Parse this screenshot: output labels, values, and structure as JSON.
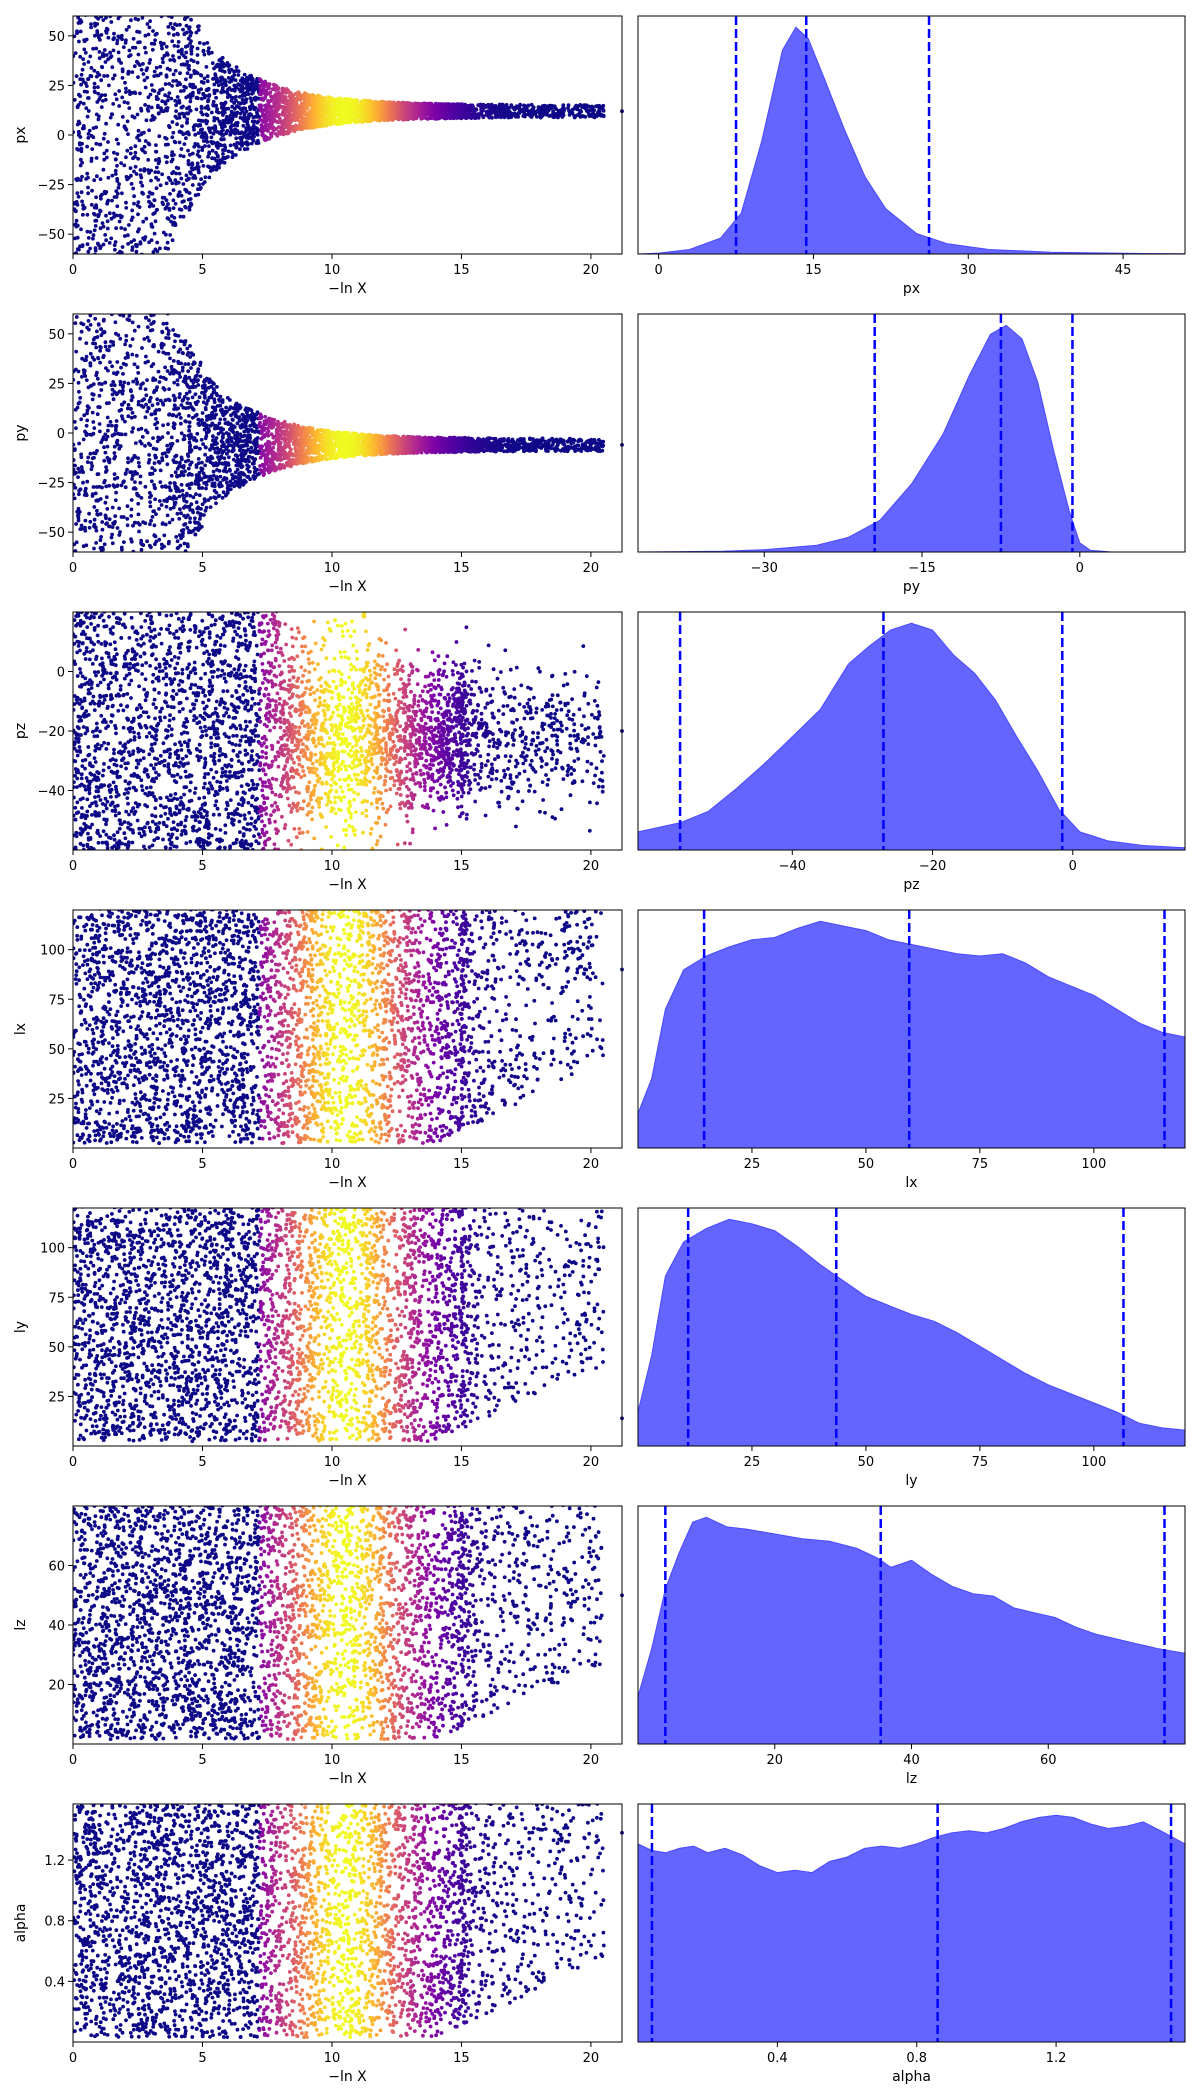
{
  "figure": {
    "x_axis_label": "−ln X",
    "colormap": "plasma",
    "scatter_color_low": "#0d0887",
    "kde_fill_color": "#6464ff",
    "kde_edge_color": "#4a4aff",
    "quantile_line_color": "#0000ff"
  },
  "chart_data": [
    {
      "type": "scatter",
      "name": "px-trace",
      "parameter": "px",
      "xlabel": "−ln X",
      "ylabel": "px",
      "xlim": [
        0,
        21.2
      ],
      "ylim": [
        -60,
        60
      ],
      "xticks": [
        0,
        5,
        10,
        15,
        20
      ],
      "yticks": [
        -50,
        -25,
        0,
        25,
        50
      ],
      "pattern": "converge",
      "converge_center": 12,
      "final_x": 21.2,
      "final_y": 12
    },
    {
      "type": "area",
      "name": "px-kde",
      "parameter": "px",
      "xlabel": "px",
      "ylabel": "",
      "xlim": [
        -2,
        51
      ],
      "xticks": [
        0,
        15,
        30,
        45
      ],
      "density": [
        [
          -2,
          0
        ],
        [
          0,
          0.004
        ],
        [
          3,
          0.02
        ],
        [
          6,
          0.07
        ],
        [
          8,
          0.18
        ],
        [
          10,
          0.5
        ],
        [
          12,
          0.9
        ],
        [
          13.3,
          1.0
        ],
        [
          14.5,
          0.95
        ],
        [
          16,
          0.78
        ],
        [
          18,
          0.55
        ],
        [
          20,
          0.34
        ],
        [
          22,
          0.2
        ],
        [
          25,
          0.09
        ],
        [
          28,
          0.045
        ],
        [
          32,
          0.02
        ],
        [
          38,
          0.008
        ],
        [
          45,
          0.003
        ],
        [
          51,
          0.001
        ]
      ],
      "quantiles": [
        7.5,
        14.3,
        26.2
      ]
    },
    {
      "type": "scatter",
      "name": "py-trace",
      "parameter": "py",
      "xlabel": "−ln X",
      "ylabel": "py",
      "xlim": [
        0,
        21.2
      ],
      "ylim": [
        -60,
        60
      ],
      "xticks": [
        0,
        5,
        10,
        15,
        20
      ],
      "yticks": [
        -50,
        -25,
        0,
        25,
        50
      ],
      "pattern": "converge",
      "converge_center": -6,
      "final_x": 21.2,
      "final_y": -6
    },
    {
      "type": "area",
      "name": "py-kde",
      "parameter": "py",
      "xlabel": "py",
      "ylabel": "",
      "xlim": [
        -42,
        10
      ],
      "xticks": [
        -30,
        -15,
        0
      ],
      "density": [
        [
          -42,
          0
        ],
        [
          -34,
          0.003
        ],
        [
          -30,
          0.01
        ],
        [
          -25,
          0.03
        ],
        [
          -22,
          0.065
        ],
        [
          -19,
          0.14
        ],
        [
          -16,
          0.3
        ],
        [
          -13,
          0.52
        ],
        [
          -10.5,
          0.78
        ],
        [
          -8.5,
          0.96
        ],
        [
          -7,
          1.0
        ],
        [
          -5.5,
          0.94
        ],
        [
          -4,
          0.75
        ],
        [
          -2.5,
          0.45
        ],
        [
          -1,
          0.18
        ],
        [
          0,
          0.04
        ],
        [
          1,
          0.008
        ],
        [
          3,
          0.0
        ],
        [
          10,
          0.0
        ]
      ],
      "quantiles": [
        -19.5,
        -7.5,
        -0.7
      ]
    },
    {
      "type": "scatter",
      "name": "pz-trace",
      "parameter": "pz",
      "xlabel": "−ln X",
      "ylabel": "pz",
      "xlim": [
        0,
        21.2
      ],
      "ylim": [
        -60,
        20
      ],
      "xticks": [
        0,
        5,
        10,
        15,
        20
      ],
      "yticks": [
        -40,
        -20,
        0
      ],
      "pattern": "band",
      "band_center": -22,
      "band_spread": 22,
      "final_x": 21.2,
      "final_y": -20
    },
    {
      "type": "area",
      "name": "pz-kde",
      "parameter": "pz",
      "xlabel": "pz",
      "ylabel": "",
      "xlim": [
        -62,
        16
      ],
      "xticks": [
        -40,
        -20,
        0
      ],
      "density": [
        [
          -62,
          0.08
        ],
        [
          -56,
          0.12
        ],
        [
          -52,
          0.17
        ],
        [
          -48,
          0.27
        ],
        [
          -44,
          0.38
        ],
        [
          -40,
          0.5
        ],
        [
          -36,
          0.62
        ],
        [
          -32,
          0.82
        ],
        [
          -29,
          0.9
        ],
        [
          -26,
          0.97
        ],
        [
          -23,
          1.0
        ],
        [
          -20,
          0.97
        ],
        [
          -17,
          0.86
        ],
        [
          -14,
          0.78
        ],
        [
          -11,
          0.66
        ],
        [
          -8,
          0.5
        ],
        [
          -5,
          0.35
        ],
        [
          -2,
          0.18
        ],
        [
          1,
          0.08
        ],
        [
          5,
          0.04
        ],
        [
          10,
          0.02
        ],
        [
          16,
          0.01
        ]
      ],
      "quantiles": [
        -56,
        -27,
        -1.5
      ]
    },
    {
      "type": "scatter",
      "name": "lx-trace",
      "parameter": "lx",
      "xlabel": "−ln X",
      "ylabel": "lx",
      "xlim": [
        0,
        21.2
      ],
      "ylim": [
        0,
        120
      ],
      "xticks": [
        0,
        5,
        10,
        15,
        20
      ],
      "yticks": [
        25,
        50,
        75,
        100
      ],
      "pattern": "uniform",
      "final_x": 21.2,
      "final_y": 90
    },
    {
      "type": "area",
      "name": "lx-kde",
      "parameter": "lx",
      "xlabel": "lx",
      "ylabel": "",
      "xlim": [
        0,
        120
      ],
      "xticks": [
        25,
        50,
        75,
        100
      ],
      "density": [
        [
          0,
          0.15
        ],
        [
          3,
          0.3
        ],
        [
          6,
          0.6
        ],
        [
          10,
          0.77
        ],
        [
          15,
          0.83
        ],
        [
          20,
          0.87
        ],
        [
          25,
          0.9
        ],
        [
          30,
          0.91
        ],
        [
          35,
          0.95
        ],
        [
          40,
          0.98
        ],
        [
          45,
          0.96
        ],
        [
          50,
          0.94
        ],
        [
          55,
          0.9
        ],
        [
          60,
          0.88
        ],
        [
          65,
          0.86
        ],
        [
          70,
          0.84
        ],
        [
          75,
          0.83
        ],
        [
          80,
          0.84
        ],
        [
          85,
          0.8
        ],
        [
          90,
          0.74
        ],
        [
          95,
          0.7
        ],
        [
          100,
          0.66
        ],
        [
          105,
          0.6
        ],
        [
          110,
          0.54
        ],
        [
          115,
          0.5
        ],
        [
          120,
          0.48
        ]
      ],
      "quantiles": [
        14.5,
        59.5,
        115.5
      ]
    },
    {
      "type": "scatter",
      "name": "ly-trace",
      "parameter": "ly",
      "xlabel": "−ln X",
      "ylabel": "ly",
      "xlim": [
        0,
        21.2
      ],
      "ylim": [
        0,
        120
      ],
      "xticks": [
        0,
        5,
        10,
        15,
        20
      ],
      "yticks": [
        25,
        50,
        75,
        100
      ],
      "pattern": "uniform",
      "final_x": 21.2,
      "final_y": 14
    },
    {
      "type": "area",
      "name": "ly-kde",
      "parameter": "ly",
      "xlabel": "ly",
      "ylabel": "",
      "xlim": [
        0,
        120
      ],
      "xticks": [
        25,
        50,
        75,
        100
      ],
      "density": [
        [
          0,
          0.15
        ],
        [
          3,
          0.4
        ],
        [
          6,
          0.75
        ],
        [
          10,
          0.9
        ],
        [
          15,
          0.96
        ],
        [
          20,
          1.0
        ],
        [
          25,
          0.98
        ],
        [
          30,
          0.95
        ],
        [
          35,
          0.88
        ],
        [
          40,
          0.8
        ],
        [
          45,
          0.73
        ],
        [
          50,
          0.66
        ],
        [
          55,
          0.62
        ],
        [
          60,
          0.58
        ],
        [
          65,
          0.55
        ],
        [
          70,
          0.5
        ],
        [
          75,
          0.44
        ],
        [
          80,
          0.38
        ],
        [
          85,
          0.32
        ],
        [
          90,
          0.27
        ],
        [
          95,
          0.23
        ],
        [
          100,
          0.19
        ],
        [
          105,
          0.15
        ],
        [
          110,
          0.1
        ],
        [
          115,
          0.08
        ],
        [
          120,
          0.07
        ]
      ],
      "quantiles": [
        11,
        43.5,
        106.5
      ]
    },
    {
      "type": "scatter",
      "name": "lz-trace",
      "parameter": "lz",
      "xlabel": "−ln X",
      "ylabel": "lz",
      "xlim": [
        0,
        21.2
      ],
      "ylim": [
        0,
        80
      ],
      "xticks": [
        0,
        5,
        10,
        15,
        20
      ],
      "yticks": [
        20,
        40,
        60
      ],
      "pattern": "uniform",
      "final_x": 21.2,
      "final_y": 50
    },
    {
      "type": "area",
      "name": "lz-kde",
      "parameter": "lz",
      "xlabel": "lz",
      "ylabel": "",
      "xlim": [
        0,
        80
      ],
      "xticks": [
        20,
        40,
        60
      ],
      "density": [
        [
          0,
          0.2
        ],
        [
          2,
          0.4
        ],
        [
          4,
          0.65
        ],
        [
          6,
          0.8
        ],
        [
          8,
          0.93
        ],
        [
          10,
          0.95
        ],
        [
          13,
          0.91
        ],
        [
          16,
          0.9
        ],
        [
          20,
          0.88
        ],
        [
          24,
          0.86
        ],
        [
          28,
          0.85
        ],
        [
          32,
          0.82
        ],
        [
          35,
          0.78
        ],
        [
          37,
          0.74
        ],
        [
          40,
          0.77
        ],
        [
          43,
          0.71
        ],
        [
          46,
          0.66
        ],
        [
          49,
          0.63
        ],
        [
          52,
          0.62
        ],
        [
          55,
          0.57
        ],
        [
          58,
          0.55
        ],
        [
          61,
          0.53
        ],
        [
          64,
          0.49
        ],
        [
          67,
          0.46
        ],
        [
          70,
          0.44
        ],
        [
          73,
          0.42
        ],
        [
          76,
          0.4
        ],
        [
          80,
          0.38
        ]
      ],
      "quantiles": [
        4,
        35.5,
        77
      ]
    },
    {
      "type": "scatter",
      "name": "alpha-trace",
      "parameter": "alpha",
      "xlabel": "−ln X",
      "ylabel": "alpha",
      "xlim": [
        0,
        21.2
      ],
      "ylim": [
        0,
        1.57
      ],
      "xticks": [
        0,
        5,
        10,
        15,
        20
      ],
      "yticks": [
        0.4,
        0.8,
        1.2
      ],
      "pattern": "uniform",
      "final_x": 21.2,
      "final_y": 1.38
    },
    {
      "type": "area",
      "name": "alpha-kde",
      "parameter": "alpha",
      "xlabel": "alpha",
      "ylabel": "",
      "xlim": [
        0,
        1.57
      ],
      "xticks": [
        0.4,
        0.8,
        1.2
      ],
      "density": [
        [
          0,
          0.9
        ],
        [
          0.04,
          0.87
        ],
        [
          0.08,
          0.86
        ],
        [
          0.12,
          0.88
        ],
        [
          0.16,
          0.89
        ],
        [
          0.2,
          0.86
        ],
        [
          0.25,
          0.88
        ],
        [
          0.3,
          0.85
        ],
        [
          0.35,
          0.8
        ],
        [
          0.4,
          0.77
        ],
        [
          0.45,
          0.78
        ],
        [
          0.5,
          0.77
        ],
        [
          0.55,
          0.82
        ],
        [
          0.6,
          0.84
        ],
        [
          0.65,
          0.88
        ],
        [
          0.7,
          0.89
        ],
        [
          0.75,
          0.88
        ],
        [
          0.8,
          0.9
        ],
        [
          0.85,
          0.93
        ],
        [
          0.9,
          0.95
        ],
        [
          0.95,
          0.96
        ],
        [
          1.0,
          0.95
        ],
        [
          1.05,
          0.97
        ],
        [
          1.1,
          1.0
        ],
        [
          1.15,
          1.02
        ],
        [
          1.2,
          1.03
        ],
        [
          1.25,
          1.02
        ],
        [
          1.3,
          0.99
        ],
        [
          1.35,
          0.97
        ],
        [
          1.4,
          0.98
        ],
        [
          1.45,
          1.0
        ],
        [
          1.5,
          0.96
        ],
        [
          1.57,
          0.9
        ]
      ],
      "quantiles": [
        0.04,
        0.86,
        1.53
      ]
    }
  ]
}
